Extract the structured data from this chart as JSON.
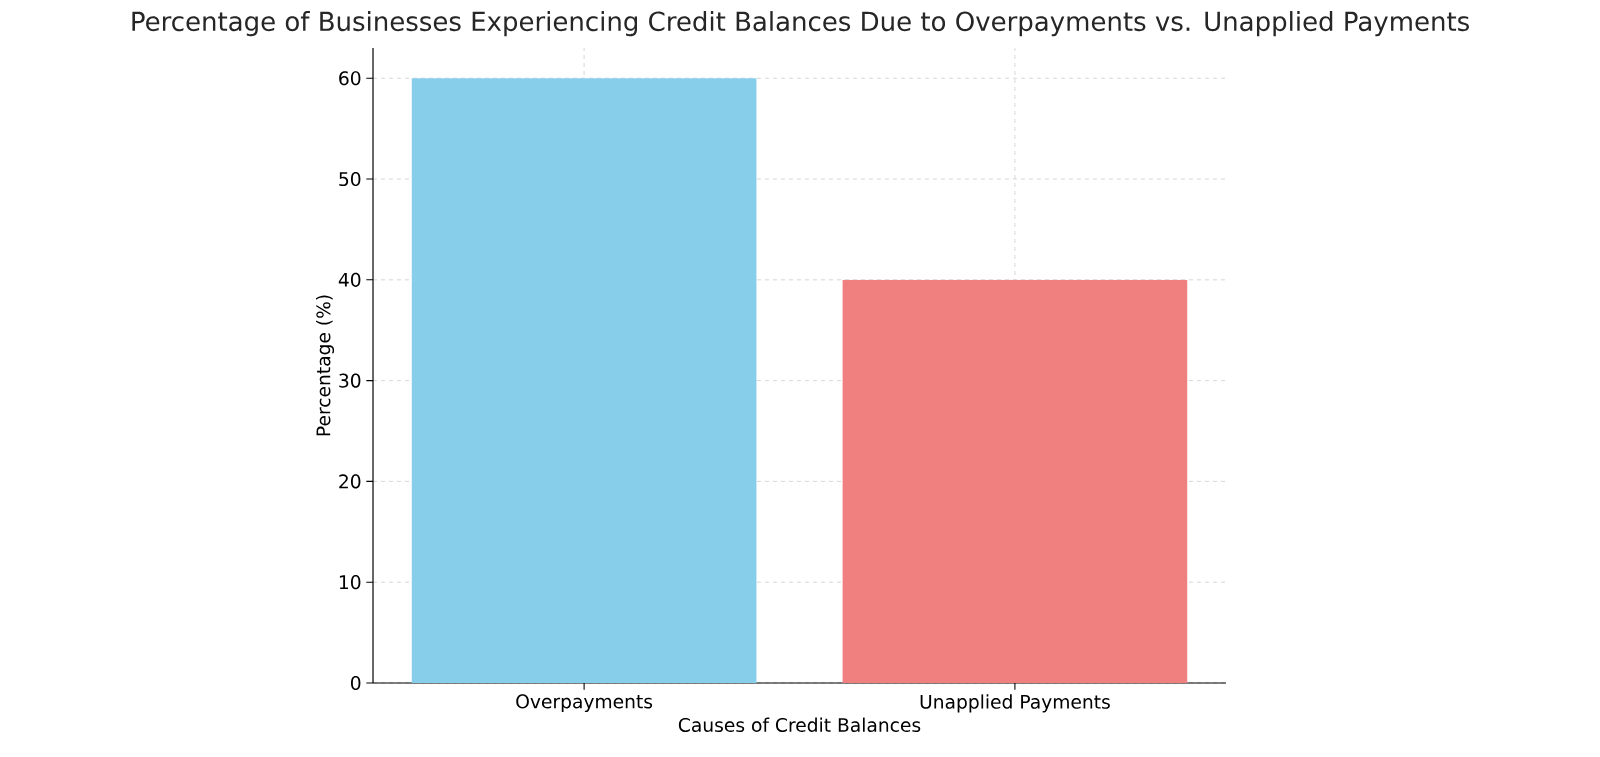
{
  "chart_data": {
    "type": "bar",
    "title": "Percentage of Businesses Experiencing Credit Balances Due to Overpayments vs. Unapplied Payments",
    "xlabel": "Causes of Credit Balances",
    "ylabel": "Percentage (%)",
    "categories": [
      "Overpayments",
      "Unapplied Payments"
    ],
    "values": [
      60,
      40
    ],
    "colors": [
      "#87ceeb",
      "#f08080"
    ],
    "ylim": [
      0,
      63
    ],
    "yticks": [
      0,
      10,
      20,
      30,
      40,
      50,
      60
    ],
    "grid": true
  }
}
